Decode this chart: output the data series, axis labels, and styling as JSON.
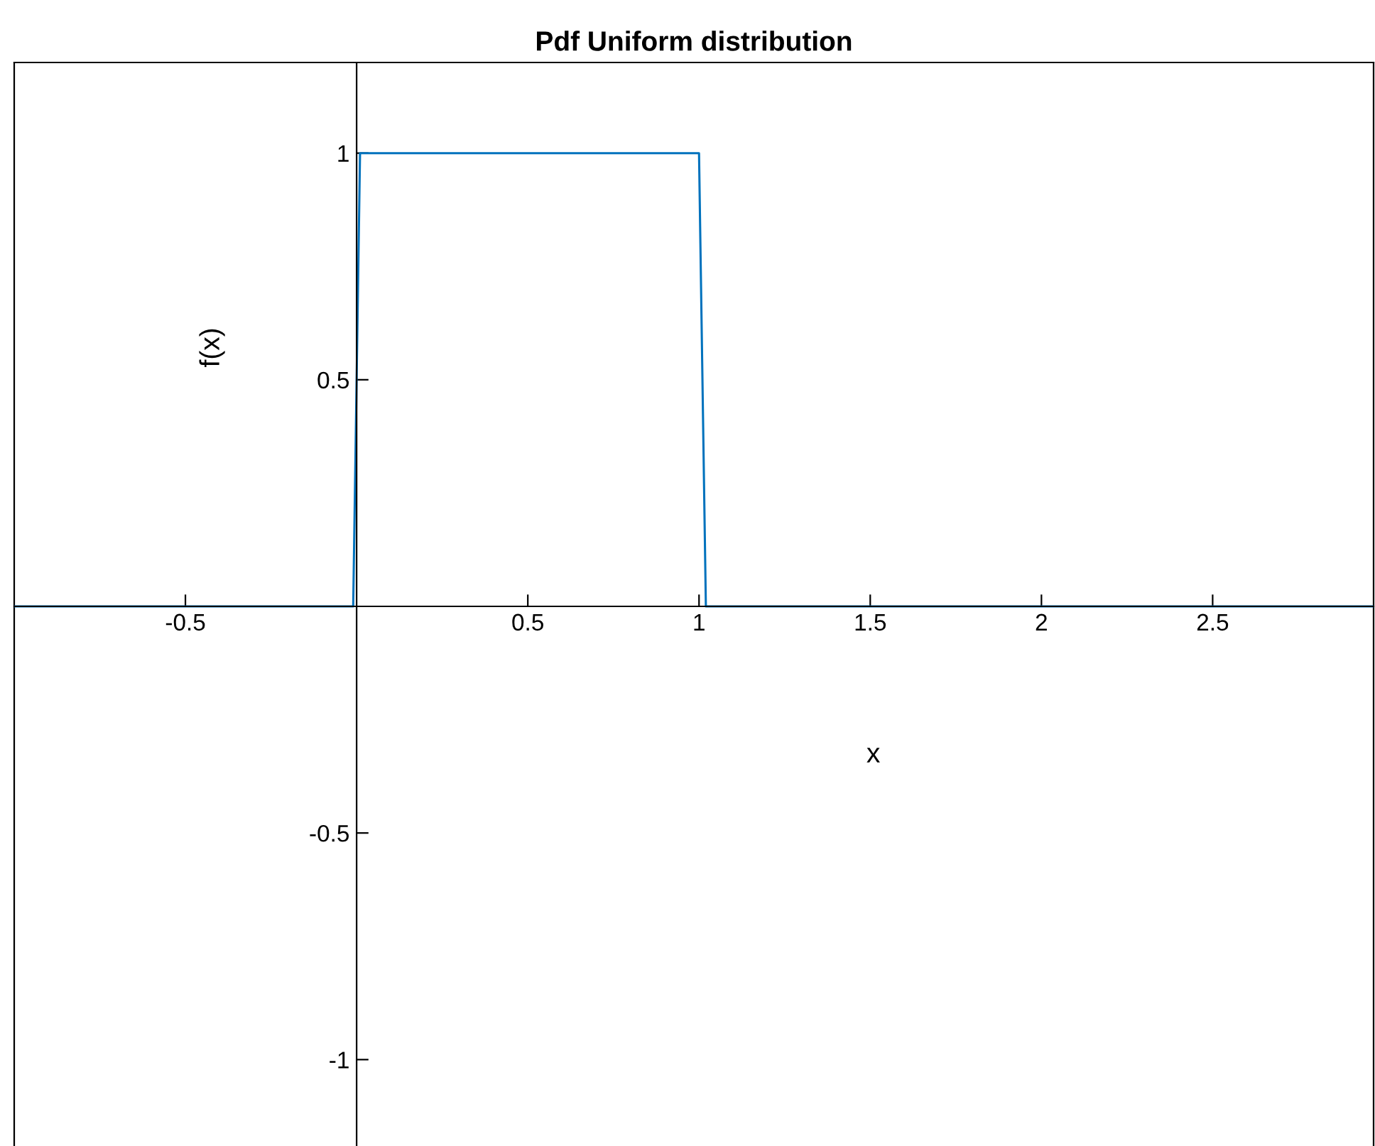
{
  "chart_data": {
    "type": "line",
    "title": "Pdf Uniform distribution",
    "xlabel": "x",
    "ylabel": "f(x)",
    "series": [
      {
        "color": "#0072bd",
        "x": [
          -1,
          -0.01,
          0.01,
          1,
          1.02,
          2.97
        ],
        "values": [
          0,
          0,
          1,
          1,
          0,
          0
        ]
      }
    ],
    "xlim": [
      -1,
      2.97
    ],
    "ylim": [
      -1.2,
      1.2
    ],
    "xticks": [
      -0.5,
      0.5,
      1,
      1.5,
      2,
      2.5
    ],
    "yticks": [
      -1,
      -0.5,
      0.5,
      1
    ],
    "grid": false,
    "marker": "none",
    "line_style": "solid"
  }
}
